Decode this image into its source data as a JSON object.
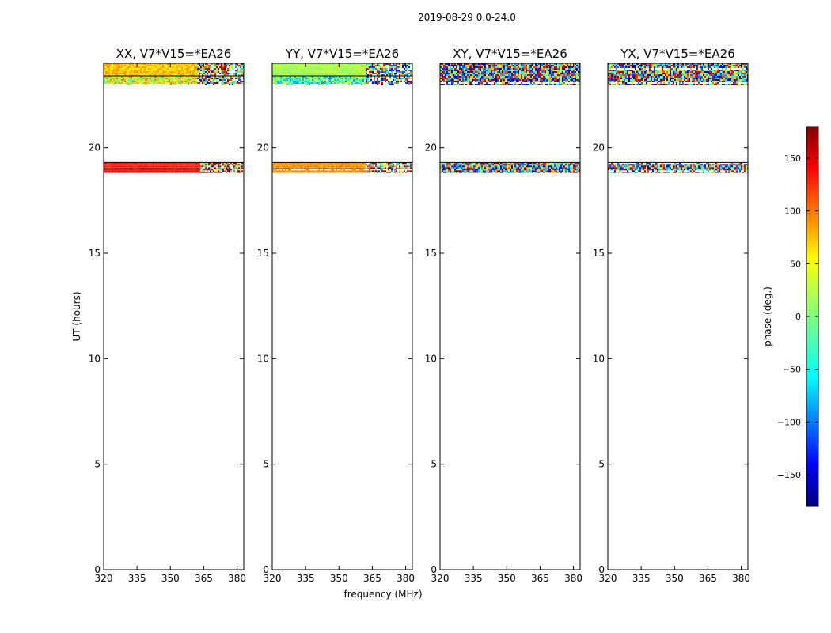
{
  "figure": {
    "suptitle": "2019-08-29 0.0-24.0",
    "xlabel": "frequency (MHz)",
    "ylabel": "UT (hours)"
  },
  "chart_data": {
    "type": "heatmap",
    "x_ticks": [
      320,
      335,
      350,
      365,
      380
    ],
    "y_ticks": [
      0,
      5,
      10,
      15,
      20
    ],
    "xlim": [
      320,
      383
    ],
    "ylim": [
      0,
      24
    ],
    "colorbar": {
      "label": "phase (deg.)",
      "ticks": [
        150,
        100,
        50,
        0,
        -50,
        -100,
        -150
      ],
      "tick_labels": [
        "150",
        "100",
        "50",
        "0",
        "−50",
        "−100",
        "−150"
      ],
      "range": [
        -180,
        180
      ],
      "colormap": "jet"
    },
    "panels": [
      {
        "title": "XX, V7*V15=*EA26",
        "bands": [
          {
            "t0": 23.4,
            "t1": 24.0,
            "f_split": 362,
            "phase_left": 65,
            "phase_right": 40,
            "noise_left": 20,
            "noise_right": 160
          },
          {
            "t0": 22.95,
            "t1": 23.4,
            "f_split": 362,
            "phase_left": 40,
            "phase_right": 10,
            "noise_left": 60,
            "noise_right": 170
          },
          {
            "t0": 19.0,
            "t1": 19.3,
            "f_split": 363,
            "phase_left": 125,
            "phase_right": 100,
            "noise_left": 10,
            "noise_right": 170
          },
          {
            "t0": 18.8,
            "t1": 19.0,
            "f_split": 363,
            "phase_left": 130,
            "phase_right": 110,
            "noise_left": 8,
            "noise_right": 170
          }
        ]
      },
      {
        "title": "YY, V7*V15=*EA26",
        "bands": [
          {
            "t0": 23.4,
            "t1": 24.0,
            "f_split": 362,
            "phase_left": 15,
            "phase_right": 10,
            "noise_left": 15,
            "noise_right": 160
          },
          {
            "t0": 22.95,
            "t1": 23.4,
            "f_split": 362,
            "phase_left": -20,
            "phase_right": 0,
            "noise_left": 70,
            "noise_right": 170
          },
          {
            "t0": 19.0,
            "t1": 19.3,
            "f_split": 362,
            "phase_left": 85,
            "phase_right": 60,
            "noise_left": 15,
            "noise_right": 170
          },
          {
            "t0": 18.8,
            "t1": 19.0,
            "f_split": 362,
            "phase_left": 85,
            "phase_right": 70,
            "noise_left": 12,
            "noise_right": 170
          }
        ]
      },
      {
        "title": "XY, V7*V15=*EA26",
        "bands": [
          {
            "t0": 22.95,
            "t1": 24.0,
            "f_split": 383,
            "phase_left": 0,
            "phase_right": 0,
            "noise_left": 180,
            "noise_right": 180
          },
          {
            "t0": 18.8,
            "t1": 19.3,
            "f_split": 383,
            "phase_left": 0,
            "phase_right": 0,
            "noise_left": 180,
            "noise_right": 180
          }
        ]
      },
      {
        "title": "YX, V7*V15=*EA26",
        "bands": [
          {
            "t0": 22.95,
            "t1": 24.0,
            "f_split": 383,
            "phase_left": 0,
            "phase_right": 0,
            "noise_left": 180,
            "noise_right": 180
          },
          {
            "t0": 18.8,
            "t1": 19.3,
            "f_split": 383,
            "phase_left": 0,
            "phase_right": 0,
            "noise_left": 180,
            "noise_right": 180
          }
        ]
      }
    ]
  }
}
